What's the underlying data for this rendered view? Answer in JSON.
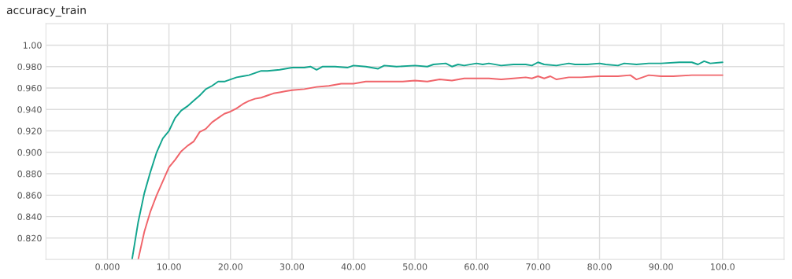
{
  "chart_data": {
    "type": "line",
    "title": "accuracy_train",
    "xlim": [
      -10,
      110
    ],
    "xticks": [
      {
        "value": 0,
        "label": "0.000"
      },
      {
        "value": 10,
        "label": "10.00"
      },
      {
        "value": 20,
        "label": "20.00"
      },
      {
        "value": 30,
        "label": "30.00"
      },
      {
        "value": 40,
        "label": "40.00"
      },
      {
        "value": 50,
        "label": "50.00"
      },
      {
        "value": 60,
        "label": "60.00"
      },
      {
        "value": 70,
        "label": "70.00"
      },
      {
        "value": 80,
        "label": "80.00"
      },
      {
        "value": 90,
        "label": "90.00"
      },
      {
        "value": 100,
        "label": "100.0"
      }
    ],
    "ylim": [
      0.8,
      1.02
    ],
    "yticks": [
      {
        "value": 0.82,
        "label": "0.820"
      },
      {
        "value": 0.84,
        "label": "0.840"
      },
      {
        "value": 0.86,
        "label": "0.860"
      },
      {
        "value": 0.88,
        "label": "0.880"
      },
      {
        "value": 0.9,
        "label": "0.900"
      },
      {
        "value": 0.92,
        "label": "0.920"
      },
      {
        "value": 0.94,
        "label": "0.940"
      },
      {
        "value": 0.96,
        "label": "0.960"
      },
      {
        "value": 0.98,
        "label": "0.980"
      },
      {
        "value": 1.0,
        "label": "1.00"
      }
    ],
    "grid": true,
    "line_style": "solid",
    "series": [
      {
        "color": "#12a58e",
        "x": [
          4,
          5,
          6,
          7,
          8,
          9,
          10,
          11,
          12,
          13,
          14,
          15,
          16,
          17,
          18,
          19,
          20,
          21,
          22,
          23,
          24,
          25,
          26,
          28,
          30,
          32,
          33,
          34,
          35,
          37,
          39,
          40,
          42,
          44,
          45,
          47,
          50,
          52,
          53,
          55,
          56,
          57,
          58,
          60,
          61,
          62,
          64,
          66,
          68,
          69,
          70,
          71,
          73,
          75,
          76,
          78,
          80,
          81,
          83,
          84,
          86,
          88,
          90,
          93,
          95,
          96,
          97,
          98,
          100
        ],
        "values": [
          0.8,
          0.835,
          0.862,
          0.882,
          0.9,
          0.913,
          0.92,
          0.932,
          0.939,
          0.943,
          0.948,
          0.953,
          0.959,
          0.962,
          0.966,
          0.966,
          0.968,
          0.97,
          0.971,
          0.972,
          0.974,
          0.976,
          0.976,
          0.977,
          0.979,
          0.979,
          0.98,
          0.977,
          0.98,
          0.98,
          0.979,
          0.981,
          0.98,
          0.978,
          0.981,
          0.98,
          0.981,
          0.98,
          0.982,
          0.983,
          0.98,
          0.982,
          0.981,
          0.983,
          0.982,
          0.983,
          0.981,
          0.982,
          0.982,
          0.981,
          0.984,
          0.982,
          0.981,
          0.983,
          0.982,
          0.982,
          0.983,
          0.982,
          0.981,
          0.983,
          0.982,
          0.983,
          0.983,
          0.984,
          0.984,
          0.982,
          0.985,
          0.983,
          0.984
        ]
      },
      {
        "color": "#f0646a",
        "x": [
          5,
          6,
          7,
          8,
          9,
          10,
          11,
          12,
          13,
          14,
          15,
          16,
          17,
          18,
          19,
          20,
          21,
          22,
          23,
          24,
          25,
          26,
          27,
          28,
          29,
          30,
          32,
          34,
          36,
          38,
          40,
          42,
          44,
          46,
          48,
          50,
          52,
          54,
          56,
          58,
          60,
          62,
          64,
          66,
          68,
          69,
          70,
          71,
          72,
          73,
          75,
          77,
          80,
          83,
          85,
          86,
          88,
          90,
          92,
          95,
          98,
          100
        ],
        "values": [
          0.8,
          0.826,
          0.845,
          0.86,
          0.873,
          0.886,
          0.893,
          0.901,
          0.906,
          0.91,
          0.919,
          0.922,
          0.928,
          0.932,
          0.936,
          0.938,
          0.941,
          0.945,
          0.948,
          0.95,
          0.951,
          0.953,
          0.955,
          0.956,
          0.957,
          0.958,
          0.959,
          0.961,
          0.962,
          0.964,
          0.964,
          0.966,
          0.966,
          0.966,
          0.966,
          0.967,
          0.966,
          0.968,
          0.967,
          0.969,
          0.969,
          0.969,
          0.968,
          0.969,
          0.97,
          0.969,
          0.971,
          0.969,
          0.971,
          0.968,
          0.97,
          0.97,
          0.971,
          0.971,
          0.972,
          0.968,
          0.972,
          0.971,
          0.971,
          0.972,
          0.972,
          0.972
        ]
      }
    ]
  }
}
